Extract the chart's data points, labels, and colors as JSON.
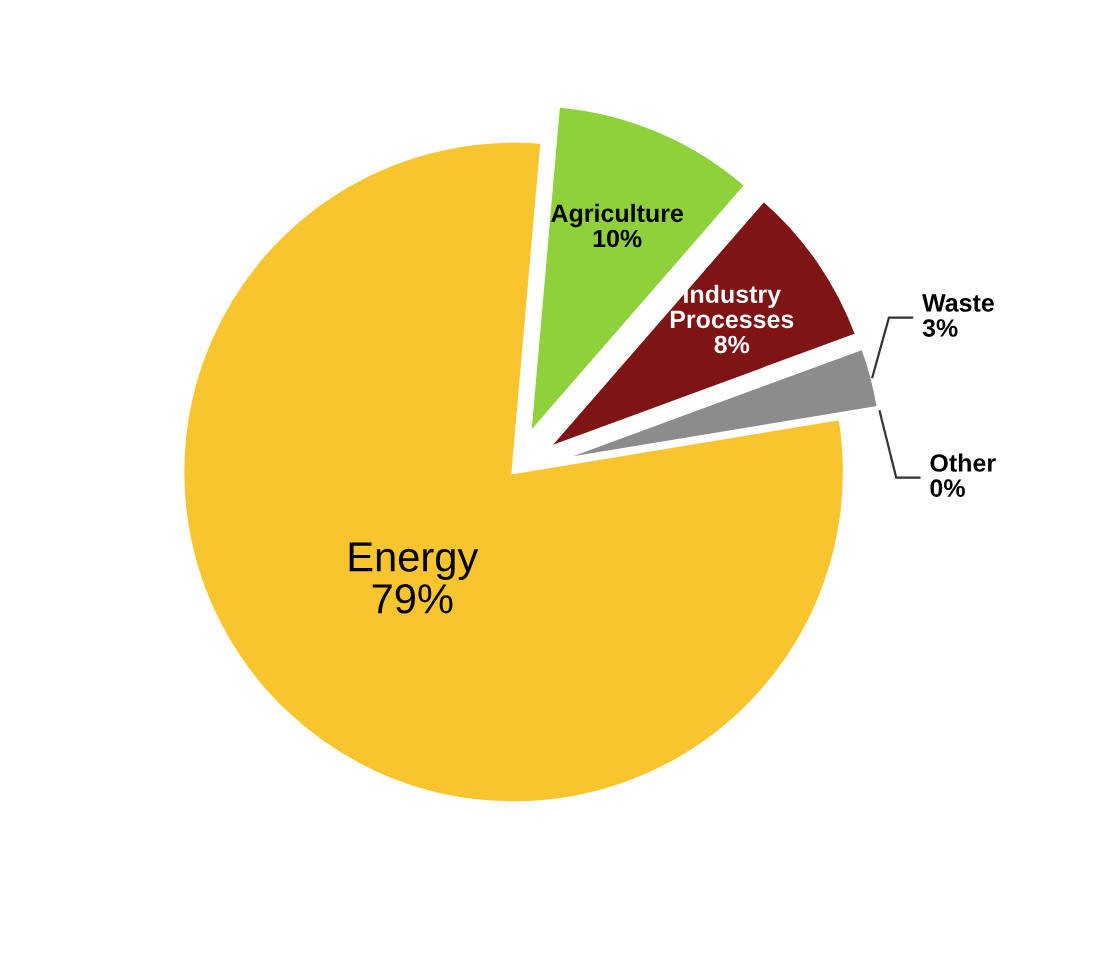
{
  "chart_data": {
    "type": "pie",
    "categories": [
      "Agriculture",
      "Industry Processes",
      "Waste",
      "Other",
      "Energy"
    ],
    "values": [
      10,
      8,
      3,
      0,
      79
    ],
    "colors": [
      "#8fd13a",
      "#7f1414",
      "#8c8c8c",
      "#111111",
      "#f9c52e"
    ],
    "value_labels": [
      "10%",
      "8%",
      "3%",
      "0%",
      "79%"
    ]
  }
}
